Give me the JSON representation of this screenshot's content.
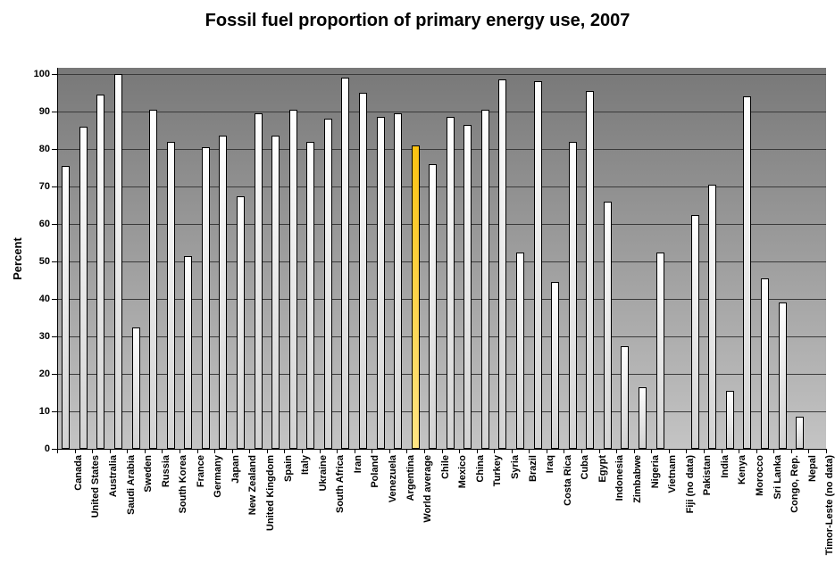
{
  "title": "Fossil fuel proportion of primary energy use, 2007",
  "chart_data": {
    "type": "bar",
    "title": "Fossil fuel proportion of primary energy use, 2007",
    "xlabel": "",
    "ylabel": "Percent",
    "ylim": [
      0,
      100
    ],
    "yticks": [
      0,
      10,
      20,
      30,
      40,
      50,
      60,
      70,
      80,
      90,
      100
    ],
    "grid": "horizontal",
    "legend": "none",
    "categories": [
      "Canada",
      "United States",
      "Australia",
      "Saudi Arabia",
      "Sweden",
      "Russia",
      "South Korea",
      "France",
      "Germany",
      "Japan",
      "New Zealand",
      "United Kingdom",
      "Spain",
      "Italy",
      "Ukraine",
      "South Africa",
      "Iran",
      "Poland",
      "Venezuela",
      "Argentina",
      "World average",
      "Chile",
      "Mexico",
      "China",
      "Turkey",
      "Syria",
      "Brazil",
      "Iraq",
      "Costa Rica",
      "Cuba",
      "Egypt",
      "Indonesia",
      "Zimbabwe",
      "Nigeria",
      "Vietnam",
      "Fiji (no data)",
      "Pakistan",
      "India",
      "Kenya",
      "Morocco",
      "Sri Lanka",
      "Congo, Rep.",
      "Nepal",
      "Timor-Leste (no data)"
    ],
    "values": [
      75.5,
      86,
      94.5,
      100,
      32.5,
      90.5,
      82,
      51.5,
      80.5,
      83.5,
      67.5,
      89.5,
      83.5,
      90.5,
      82,
      88,
      99,
      95,
      88.5,
      89.5,
      81,
      76,
      88.5,
      86.5,
      90.5,
      98.5,
      52.5,
      98,
      44.5,
      82,
      95.5,
      66,
      27.5,
      16.5,
      52.5,
      null,
      62.5,
      70.5,
      15.5,
      94,
      45.5,
      39,
      8.5,
      null
    ],
    "highlight_category": "World average",
    "highlight_index": 20,
    "no_data_categories": [
      "Fiji (no data)",
      "Timor-Leste (no data)"
    ],
    "colors": {
      "plot_bg_top": "#787878",
      "plot_bg_bottom": "#c4c4c4",
      "bar_top": "#ffffff",
      "bar_bottom": "#d2d2d2",
      "highlight_top": "#fcc211",
      "highlight_bottom": "#ffe584",
      "gridline": "#3a3a3a",
      "axis": "#000000",
      "text": "#000000"
    }
  }
}
